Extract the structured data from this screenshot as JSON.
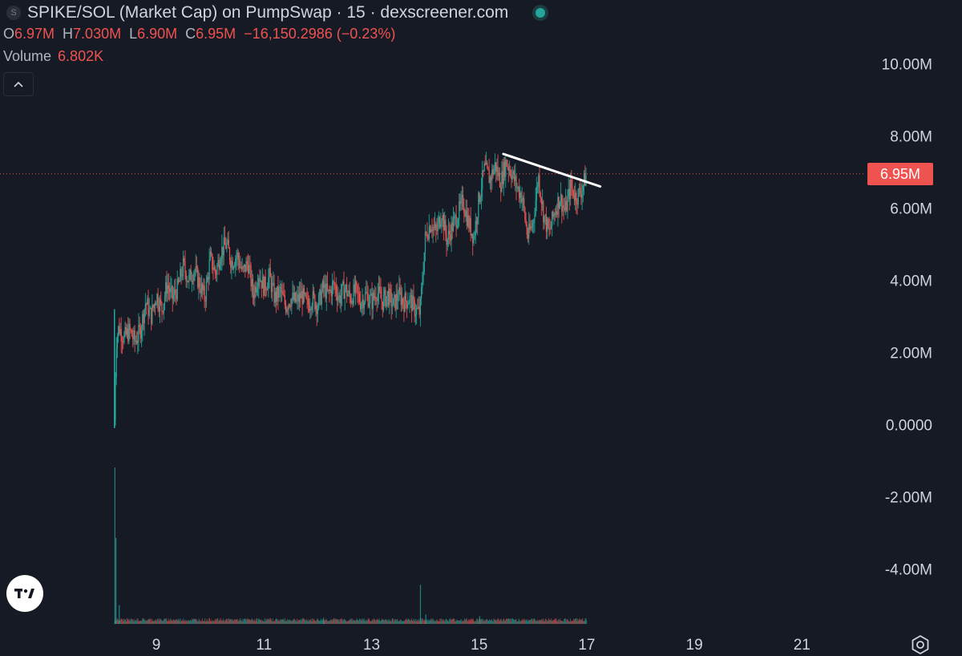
{
  "header": {
    "icon_letter": "S",
    "title": "SPIKE/SOL (Market Cap) on PumpSwap · 15 · dexscreener.com",
    "status": "live-dot-icon"
  },
  "ohlc": {
    "o_label": "O",
    "o_value": "6.97M",
    "h_label": "H",
    "h_value": "7.030M",
    "l_label": "L",
    "l_value": "6.90M",
    "c_label": "C",
    "c_value": "6.95M",
    "change": "−16,150.2986 (−0.23%)"
  },
  "volume_legend": {
    "label": "Volume",
    "value": "6.802K"
  },
  "collapse_icon": "chevron-up-icon",
  "last_price_badge": "6.95M",
  "logo": "TV",
  "colors": {
    "background": "#161a25",
    "up": "#26a69a",
    "down": "#ef5350",
    "axis_text": "#d1d4dc",
    "trendline": "#ffffff"
  },
  "chart_data": {
    "type": "candlestick",
    "title": "SPIKE/SOL (Market Cap) on PumpSwap · 15 · dexscreener.com",
    "interval": "15",
    "y_ticks": [
      "10.00M",
      "8.00M",
      "6.00M",
      "4.00M",
      "2.00M",
      "0.0000",
      "-2.00M",
      "-4.00M"
    ],
    "y_tick_values": [
      10000000,
      8000000,
      6000000,
      4000000,
      2000000,
      0,
      -2000000,
      -4000000
    ],
    "x_ticks": [
      "9",
      "11",
      "13",
      "15",
      "17",
      "19",
      "21"
    ],
    "x_tick_values": [
      9,
      11,
      13,
      15,
      17,
      19,
      21
    ],
    "xlim": [
      8.0,
      21.4
    ],
    "ylim": [
      -5.5,
      10.5
    ],
    "last_price": 6.95,
    "price_path": [
      [
        8.22,
        0.15
      ],
      [
        8.25,
        2.3
      ],
      [
        8.3,
        2.7
      ],
      [
        8.4,
        2.4
      ],
      [
        8.5,
        2.6
      ],
      [
        8.6,
        2.3
      ],
      [
        8.7,
        2.6
      ],
      [
        8.8,
        3.4
      ],
      [
        8.9,
        3.0
      ],
      [
        9.0,
        3.6
      ],
      [
        9.1,
        3.2
      ],
      [
        9.2,
        3.9
      ],
      [
        9.3,
        3.5
      ],
      [
        9.4,
        3.8
      ],
      [
        9.5,
        4.4
      ],
      [
        9.6,
        4.0
      ],
      [
        9.7,
        4.3
      ],
      [
        9.8,
        3.9
      ],
      [
        9.9,
        3.5
      ],
      [
        10.0,
        4.6
      ],
      [
        10.1,
        4.2
      ],
      [
        10.2,
        4.8
      ],
      [
        10.3,
        5.0
      ],
      [
        10.4,
        4.5
      ],
      [
        10.5,
        4.7
      ],
      [
        10.6,
        4.2
      ],
      [
        10.7,
        4.5
      ],
      [
        10.8,
        3.6
      ],
      [
        10.9,
        4.2
      ],
      [
        11.0,
        3.8
      ],
      [
        11.1,
        4.1
      ],
      [
        11.2,
        3.5
      ],
      [
        11.3,
        3.7
      ],
      [
        11.4,
        3.3
      ],
      [
        11.5,
        3.5
      ],
      [
        11.6,
        3.4
      ],
      [
        11.7,
        3.6
      ],
      [
        11.8,
        3.3
      ],
      [
        11.9,
        3.5
      ],
      [
        12.0,
        3.3
      ],
      [
        12.1,
        3.8
      ],
      [
        12.2,
        3.6
      ],
      [
        12.3,
        3.9
      ],
      [
        12.4,
        3.5
      ],
      [
        12.5,
        3.8
      ],
      [
        12.6,
        3.5
      ],
      [
        12.7,
        3.7
      ],
      [
        12.8,
        3.4
      ],
      [
        12.9,
        3.6
      ],
      [
        13.0,
        3.4
      ],
      [
        13.1,
        3.7
      ],
      [
        13.2,
        3.4
      ],
      [
        13.3,
        3.6
      ],
      [
        13.4,
        3.3
      ],
      [
        13.5,
        3.6
      ],
      [
        13.6,
        3.4
      ],
      [
        13.7,
        3.5
      ],
      [
        13.8,
        3.2
      ],
      [
        13.9,
        3.1
      ],
      [
        14.0,
        5.2
      ],
      [
        14.1,
        5.6
      ],
      [
        14.2,
        5.3
      ],
      [
        14.3,
        5.9
      ],
      [
        14.4,
        5.1
      ],
      [
        14.5,
        5.5
      ],
      [
        14.6,
        5.8
      ],
      [
        14.7,
        6.2
      ],
      [
        14.8,
        5.6
      ],
      [
        14.9,
        5.2
      ],
      [
        15.0,
        6.3
      ],
      [
        15.1,
        7.1
      ],
      [
        15.2,
        6.8
      ],
      [
        15.3,
        7.2
      ],
      [
        15.4,
        6.7
      ],
      [
        15.5,
        7.3
      ],
      [
        15.6,
        7.0
      ],
      [
        15.7,
        6.6
      ],
      [
        15.8,
        6.3
      ],
      [
        15.9,
        5.2
      ],
      [
        16.0,
        5.6
      ],
      [
        16.1,
        6.9
      ],
      [
        16.2,
        5.8
      ],
      [
        16.3,
        5.3
      ],
      [
        16.4,
        5.9
      ],
      [
        16.5,
        6.3
      ],
      [
        16.6,
        5.9
      ],
      [
        16.7,
        6.6
      ],
      [
        16.8,
        6.3
      ],
      [
        16.9,
        6.5
      ],
      [
        17.0,
        6.95
      ]
    ],
    "annotations": [
      {
        "type": "trendline",
        "x": [
          15.45,
          17.25
        ],
        "y": [
          7.5,
          6.6
        ]
      }
    ],
    "volume": {
      "name": "Volume",
      "spikes": [
        [
          8.22,
          100
        ],
        [
          8.24,
          55
        ],
        [
          8.3,
          12
        ],
        [
          12.1,
          4
        ],
        [
          13.9,
          25
        ],
        [
          14.0,
          6
        ],
        [
          15.0,
          5
        ]
      ],
      "baseline": 1.5,
      "max": 100
    }
  }
}
